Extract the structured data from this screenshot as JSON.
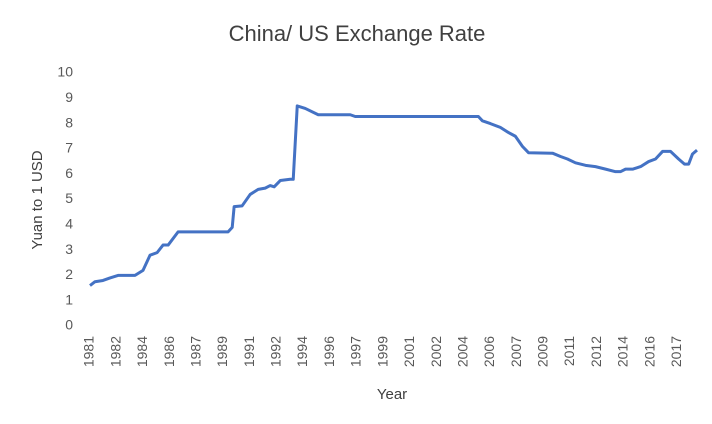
{
  "chart_data": {
    "type": "line",
    "title": "China/ US Exchange Rate",
    "x_label": "Year",
    "y_label": "Yuan to 1 USD",
    "x": [
      1981.0,
      1981.31,
      1981.81,
      1982.25,
      1982.75,
      1983.81,
      1984.31,
      1984.75,
      1985.19,
      1985.56,
      1985.88,
      1986.5,
      1989.62,
      1989.88,
      1990.0,
      1990.5,
      1991.0,
      1991.5,
      1991.94,
      1992.25,
      1992.5,
      1992.88,
      1993.5,
      1993.69,
      1993.94,
      1994.44,
      1995.25,
      1997.25,
      1997.56,
      2005.25,
      2005.5,
      2006.0,
      2006.62,
      2007.12,
      2007.56,
      2008.0,
      2008.38,
      2009.88,
      2010.38,
      2010.81,
      2011.31,
      2011.94,
      2012.56,
      2013.19,
      2013.81,
      2014.12,
      2014.44,
      2014.88,
      2015.38,
      2015.88,
      2016.31,
      2016.75,
      2017.25,
      2017.75,
      2018.12,
      2018.38,
      2018.62,
      2018.9
    ],
    "series": [
      {
        "name": "Yuan to 1 USD",
        "color": "#4472c4",
        "values": [
          1.6,
          1.75,
          1.8,
          1.9,
          2.0,
          2.0,
          2.2,
          2.8,
          2.9,
          3.2,
          3.2,
          3.72,
          3.72,
          3.9,
          4.72,
          4.75,
          5.2,
          5.4,
          5.45,
          5.55,
          5.5,
          5.75,
          5.8,
          5.8,
          8.7,
          8.6,
          8.35,
          8.35,
          8.28,
          8.28,
          8.11,
          8.0,
          7.85,
          7.65,
          7.5,
          7.1,
          6.85,
          6.83,
          6.7,
          6.6,
          6.45,
          6.35,
          6.3,
          6.2,
          6.1,
          6.1,
          6.2,
          6.2,
          6.3,
          6.5,
          6.6,
          6.9,
          6.9,
          6.6,
          6.4,
          6.4,
          6.8,
          6.95
        ]
      }
    ],
    "xlim": [
      1981,
      2018.9
    ],
    "xticks": [
      {
        "value": 1981,
        "label": "1981"
      },
      {
        "value": 1982.67,
        "label": "1982"
      },
      {
        "value": 1984.33,
        "label": "1984"
      },
      {
        "value": 1986,
        "label": "1986"
      },
      {
        "value": 1987.67,
        "label": "1987"
      },
      {
        "value": 1989.33,
        "label": "1989"
      },
      {
        "value": 1991,
        "label": "1991"
      },
      {
        "value": 1992.67,
        "label": "1992"
      },
      {
        "value": 1994.33,
        "label": "1994"
      },
      {
        "value": 1996,
        "label": "1996"
      },
      {
        "value": 1997.67,
        "label": "1997"
      },
      {
        "value": 1999.33,
        "label": "1999"
      },
      {
        "value": 2001,
        "label": "2001"
      },
      {
        "value": 2002.67,
        "label": "2002"
      },
      {
        "value": 2004.33,
        "label": "2004"
      },
      {
        "value": 2006,
        "label": "2006"
      },
      {
        "value": 2007.67,
        "label": "2007"
      },
      {
        "value": 2009.33,
        "label": "2009"
      },
      {
        "value": 2011,
        "label": "2011"
      },
      {
        "value": 2012.67,
        "label": "2012"
      },
      {
        "value": 2014.33,
        "label": "2014"
      },
      {
        "value": 2016,
        "label": "2016"
      },
      {
        "value": 2017.67,
        "label": "2017"
      }
    ],
    "ylim": [
      0,
      10
    ],
    "yticks": [
      0,
      1,
      2,
      3,
      4,
      5,
      6,
      7,
      8,
      9,
      10
    ],
    "grid": false
  }
}
